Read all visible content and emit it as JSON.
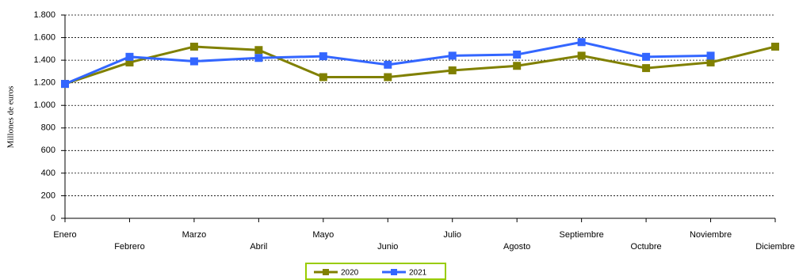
{
  "chart_data": {
    "type": "line",
    "y_label": "Millones de euros",
    "categories": [
      "Enero",
      "Febrero",
      "Marzo",
      "Abril",
      "Mayo",
      "Junio",
      "Julio",
      "Agosto",
      "Septiembre",
      "Octubre",
      "Noviembre",
      "Diciembre"
    ],
    "series": [
      {
        "name": "2020",
        "color": "#808000",
        "values": [
          1190,
          1380,
          1520,
          1490,
          1250,
          1250,
          1310,
          1350,
          1440,
          1330,
          1380,
          1520
        ]
      },
      {
        "name": "2021",
        "color": "#3366ff",
        "values": [
          1190,
          1430,
          1390,
          1420,
          1435,
          1360,
          1440,
          1450,
          1560,
          1430,
          1440,
          null
        ]
      }
    ],
    "ylim": [
      0,
      1800
    ],
    "yticks": [
      0,
      200,
      400,
      600,
      800,
      {
        "value": 1000,
        "label": "1.000"
      },
      {
        "value": 1200,
        "label": "1.200"
      },
      {
        "value": 1400,
        "label": "1.400"
      },
      {
        "value": 1600,
        "label": "1.600"
      },
      {
        "value": 1800,
        "label": "1.800"
      }
    ],
    "grid": true,
    "legend": "bottom"
  }
}
